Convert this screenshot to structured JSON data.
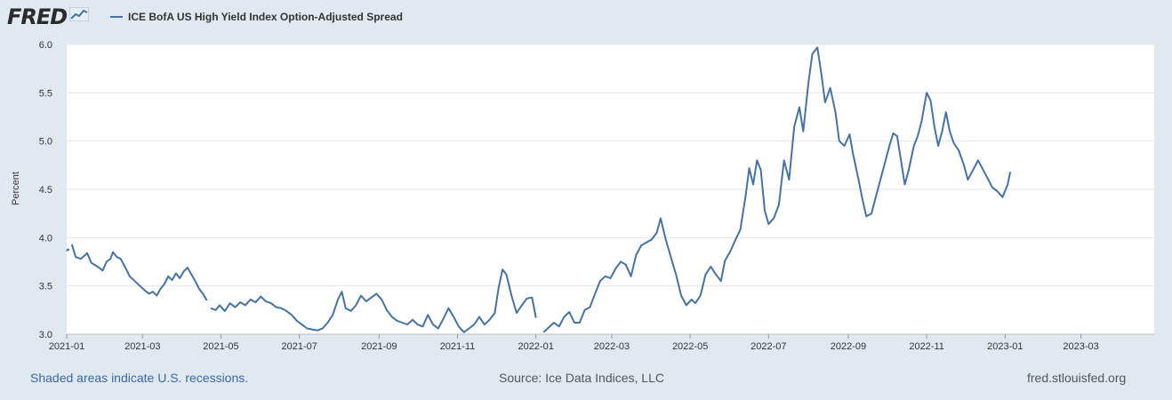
{
  "header": {
    "logo_text": "FRED",
    "legend_label": "ICE BofA US High Yield Index Option-Adjusted Spread"
  },
  "footer": {
    "recessions_note": "Shaded areas indicate U.S. recessions.",
    "source": "Source: Ice Data Indices, LLC",
    "site": "fred.stlouisfed.org"
  },
  "colors": {
    "series": "#4572a7",
    "background": "#e1e9f0",
    "plot_bg": "#ffffff",
    "grid": "#e6e6e6"
  },
  "chart_data": {
    "type": "line",
    "title": "",
    "ylabel": "Percent",
    "xlabel": "",
    "ylim": [
      3.0,
      6.0
    ],
    "xlim": [
      "2021-01-01",
      "2023-04-27"
    ],
    "y_ticks": [
      "3.0",
      "3.5",
      "4.0",
      "4.5",
      "5.0",
      "5.5",
      "6.0"
    ],
    "x_ticks": [
      {
        "label": "2021-01",
        "date": "2021-01-01"
      },
      {
        "label": "2021-03",
        "date": "2021-03-01"
      },
      {
        "label": "2021-05",
        "date": "2021-05-01"
      },
      {
        "label": "2021-07",
        "date": "2021-07-01"
      },
      {
        "label": "2021-09",
        "date": "2021-09-01"
      },
      {
        "label": "2021-11",
        "date": "2021-11-01"
      },
      {
        "label": "2022-01",
        "date": "2022-01-01"
      },
      {
        "label": "2022-03",
        "date": "2022-03-01"
      },
      {
        "label": "2022-05",
        "date": "2022-05-01"
      },
      {
        "label": "2022-07",
        "date": "2022-07-01"
      },
      {
        "label": "2022-09",
        "date": "2022-09-01"
      },
      {
        "label": "2022-11",
        "date": "2022-11-01"
      },
      {
        "label": "2023-01",
        "date": "2023-01-01"
      },
      {
        "label": "2023-03",
        "date": "2023-03-01"
      }
    ],
    "grid": true,
    "series": [
      {
        "name": "ICE BofA US High Yield Index Option-Adjusted Spread",
        "segments": [
          [
            [
              "2021-01-01",
              3.86
            ],
            [
              "2021-01-02",
              3.88
            ],
            [
              "2021-01-03",
              3.87
            ]
          ],
          [
            [
              "2021-01-05",
              3.93
            ],
            [
              "2021-01-08",
              3.8
            ],
            [
              "2021-01-12",
              3.78
            ],
            [
              "2021-01-17",
              3.84
            ],
            [
              "2021-01-20",
              3.74
            ],
            [
              "2021-01-25",
              3.7
            ],
            [
              "2021-01-29",
              3.66
            ],
            [
              "2021-02-01",
              3.75
            ],
            [
              "2021-02-04",
              3.78
            ],
            [
              "2021-02-06",
              3.85
            ],
            [
              "2021-02-09",
              3.8
            ],
            [
              "2021-02-12",
              3.78
            ],
            [
              "2021-02-16",
              3.68
            ],
            [
              "2021-02-19",
              3.6
            ],
            [
              "2021-02-23",
              3.55
            ],
            [
              "2021-02-27",
              3.5
            ],
            [
              "2021-03-03",
              3.45
            ],
            [
              "2021-03-06",
              3.42
            ],
            [
              "2021-03-09",
              3.44
            ],
            [
              "2021-03-12",
              3.4
            ],
            [
              "2021-03-15",
              3.47
            ],
            [
              "2021-03-18",
              3.52
            ],
            [
              "2021-03-21",
              3.6
            ],
            [
              "2021-03-24",
              3.56
            ],
            [
              "2021-03-27",
              3.63
            ],
            [
              "2021-03-30",
              3.58
            ],
            [
              "2021-04-02",
              3.65
            ],
            [
              "2021-04-05",
              3.69
            ],
            [
              "2021-04-08",
              3.62
            ],
            [
              "2021-04-11",
              3.55
            ],
            [
              "2021-04-14",
              3.47
            ],
            [
              "2021-04-17",
              3.42
            ],
            [
              "2021-04-20",
              3.35
            ]
          ],
          [
            [
              "2021-04-23",
              3.27
            ],
            [
              "2021-04-27",
              3.25
            ],
            [
              "2021-04-30",
              3.3
            ],
            [
              "2021-05-04",
              3.24
            ],
            [
              "2021-05-08",
              3.32
            ],
            [
              "2021-05-12",
              3.28
            ],
            [
              "2021-05-16",
              3.33
            ],
            [
              "2021-05-20",
              3.3
            ],
            [
              "2021-05-24",
              3.36
            ],
            [
              "2021-05-28",
              3.33
            ],
            [
              "2021-06-01",
              3.39
            ],
            [
              "2021-06-05",
              3.34
            ],
            [
              "2021-06-09",
              3.32
            ],
            [
              "2021-06-13",
              3.28
            ],
            [
              "2021-06-17",
              3.27
            ],
            [
              "2021-06-21",
              3.24
            ],
            [
              "2021-06-25",
              3.2
            ],
            [
              "2021-06-29",
              3.14
            ],
            [
              "2021-07-03",
              3.1
            ],
            [
              "2021-07-07",
              3.06
            ],
            [
              "2021-07-11",
              3.05
            ],
            [
              "2021-07-15",
              3.04
            ],
            [
              "2021-07-19",
              3.06
            ],
            [
              "2021-07-23",
              3.12
            ],
            [
              "2021-07-27",
              3.2
            ],
            [
              "2021-07-31",
              3.36
            ],
            [
              "2021-08-03",
              3.44
            ],
            [
              "2021-08-06",
              3.27
            ],
            [
              "2021-08-10",
              3.24
            ],
            [
              "2021-08-14",
              3.3
            ],
            [
              "2021-08-18",
              3.4
            ],
            [
              "2021-08-22",
              3.34
            ],
            [
              "2021-08-26",
              3.38
            ],
            [
              "2021-08-30",
              3.42
            ],
            [
              "2021-09-03",
              3.36
            ],
            [
              "2021-09-07",
              3.25
            ],
            [
              "2021-09-11",
              3.18
            ],
            [
              "2021-09-15",
              3.14
            ],
            [
              "2021-09-19",
              3.12
            ],
            [
              "2021-09-23",
              3.1
            ],
            [
              "2021-09-27",
              3.15
            ],
            [
              "2021-10-01",
              3.1
            ],
            [
              "2021-10-05",
              3.08
            ],
            [
              "2021-10-09",
              3.2
            ],
            [
              "2021-10-13",
              3.1
            ],
            [
              "2021-10-17",
              3.06
            ],
            [
              "2021-10-21",
              3.16
            ],
            [
              "2021-10-25",
              3.27
            ],
            [
              "2021-10-29",
              3.18
            ],
            [
              "2021-11-02",
              3.08
            ],
            [
              "2021-11-06",
              3.02
            ],
            [
              "2021-11-10",
              3.06
            ],
            [
              "2021-11-14",
              3.1
            ],
            [
              "2021-11-18",
              3.18
            ],
            [
              "2021-11-22",
              3.1
            ],
            [
              "2021-11-26",
              3.15
            ],
            [
              "2021-11-30",
              3.22
            ],
            [
              "2021-12-03",
              3.48
            ],
            [
              "2021-12-06",
              3.67
            ],
            [
              "2021-12-09",
              3.62
            ],
            [
              "2021-12-13",
              3.4
            ],
            [
              "2021-12-17",
              3.22
            ],
            [
              "2021-12-21",
              3.3
            ],
            [
              "2021-12-25",
              3.37
            ],
            [
              "2021-12-29",
              3.38
            ],
            [
              "2022-01-01",
              3.17
            ]
          ],
          [
            [
              "2022-01-07",
              3.02
            ],
            [
              "2022-01-11",
              3.07
            ],
            [
              "2022-01-15",
              3.12
            ],
            [
              "2022-01-19",
              3.08
            ],
            [
              "2022-01-23",
              3.18
            ],
            [
              "2022-01-27",
              3.23
            ],
            [
              "2022-01-31",
              3.12
            ],
            [
              "2022-02-04",
              3.12
            ],
            [
              "2022-02-08",
              3.25
            ],
            [
              "2022-02-12",
              3.28
            ],
            [
              "2022-02-16",
              3.42
            ],
            [
              "2022-02-20",
              3.55
            ],
            [
              "2022-02-24",
              3.6
            ],
            [
              "2022-02-28",
              3.58
            ],
            [
              "2022-03-04",
              3.68
            ],
            [
              "2022-03-08",
              3.75
            ],
            [
              "2022-03-12",
              3.72
            ],
            [
              "2022-03-16",
              3.6
            ],
            [
              "2022-03-20",
              3.82
            ],
            [
              "2022-03-24",
              3.92
            ],
            [
              "2022-03-28",
              3.95
            ],
            [
              "2022-04-01",
              3.98
            ],
            [
              "2022-04-05",
              4.05
            ],
            [
              "2022-04-08",
              4.2
            ],
            [
              "2022-04-12",
              3.98
            ],
            [
              "2022-04-16",
              3.8
            ],
            [
              "2022-04-20",
              3.62
            ],
            [
              "2022-04-24",
              3.4
            ],
            [
              "2022-04-28",
              3.3
            ],
            [
              "2022-05-02",
              3.36
            ],
            [
              "2022-05-05",
              3.32
            ],
            [
              "2022-05-09",
              3.4
            ],
            [
              "2022-05-13",
              3.62
            ],
            [
              "2022-05-17",
              3.7
            ],
            [
              "2022-05-21",
              3.62
            ],
            [
              "2022-05-25",
              3.55
            ],
            [
              "2022-05-28",
              3.76
            ],
            [
              "2022-06-01",
              3.85
            ],
            [
              "2022-06-05",
              3.97
            ],
            [
              "2022-06-09",
              4.08
            ],
            [
              "2022-06-13",
              4.42
            ],
            [
              "2022-06-16",
              4.72
            ],
            [
              "2022-06-19",
              4.55
            ],
            [
              "2022-06-22",
              4.8
            ],
            [
              "2022-06-25",
              4.7
            ],
            [
              "2022-06-28",
              4.28
            ],
            [
              "2022-07-01",
              4.14
            ],
            [
              "2022-07-05",
              4.2
            ],
            [
              "2022-07-09",
              4.34
            ],
            [
              "2022-07-13",
              4.8
            ],
            [
              "2022-07-17",
              4.6
            ],
            [
              "2022-07-21",
              5.15
            ],
            [
              "2022-07-25",
              5.35
            ],
            [
              "2022-07-28",
              5.1
            ],
            [
              "2022-08-01",
              5.6
            ],
            [
              "2022-08-04",
              5.9
            ],
            [
              "2022-08-08",
              5.97
            ],
            [
              "2022-08-11",
              5.7
            ],
            [
              "2022-08-14",
              5.4
            ],
            [
              "2022-08-18",
              5.55
            ],
            [
              "2022-08-22",
              5.3
            ],
            [
              "2022-08-25",
              5.0
            ],
            [
              "2022-08-29",
              4.95
            ],
            [
              "2022-09-02",
              5.07
            ],
            [
              "2022-09-05",
              4.85
            ],
            [
              "2022-09-09",
              4.6
            ],
            [
              "2022-09-12",
              4.4
            ],
            [
              "2022-09-15",
              4.22
            ],
            [
              "2022-09-19",
              4.25
            ],
            [
              "2022-09-22",
              4.4
            ],
            [
              "2022-09-26",
              4.6
            ],
            [
              "2022-09-30",
              4.8
            ],
            [
              "2022-10-03",
              4.95
            ],
            [
              "2022-10-06",
              5.08
            ],
            [
              "2022-10-09",
              5.05
            ],
            [
              "2022-10-12",
              4.8
            ],
            [
              "2022-10-15",
              4.55
            ],
            [
              "2022-10-18",
              4.7
            ],
            [
              "2022-10-22",
              4.95
            ],
            [
              "2022-10-25",
              5.05
            ],
            [
              "2022-10-28",
              5.2
            ],
            [
              "2022-11-01",
              5.5
            ],
            [
              "2022-11-04",
              5.42
            ],
            [
              "2022-11-07",
              5.15
            ],
            [
              "2022-11-10",
              4.95
            ],
            [
              "2022-11-13",
              5.1
            ],
            [
              "2022-11-16",
              5.3
            ],
            [
              "2022-11-19",
              5.1
            ],
            [
              "2022-11-22",
              4.98
            ],
            [
              "2022-11-26",
              4.9
            ],
            [
              "2022-11-30",
              4.75
            ],
            [
              "2022-12-03",
              4.6
            ],
            [
              "2022-12-07",
              4.7
            ],
            [
              "2022-12-11",
              4.8
            ],
            [
              "2022-12-15",
              4.7
            ],
            [
              "2022-12-19",
              4.6
            ],
            [
              "2022-12-22",
              4.52
            ],
            [
              "2022-12-26",
              4.48
            ],
            [
              "2022-12-30",
              4.42
            ],
            [
              "2023-01-03",
              4.55
            ],
            [
              "2023-01-05",
              4.68
            ]
          ]
        ]
      }
    ]
  }
}
